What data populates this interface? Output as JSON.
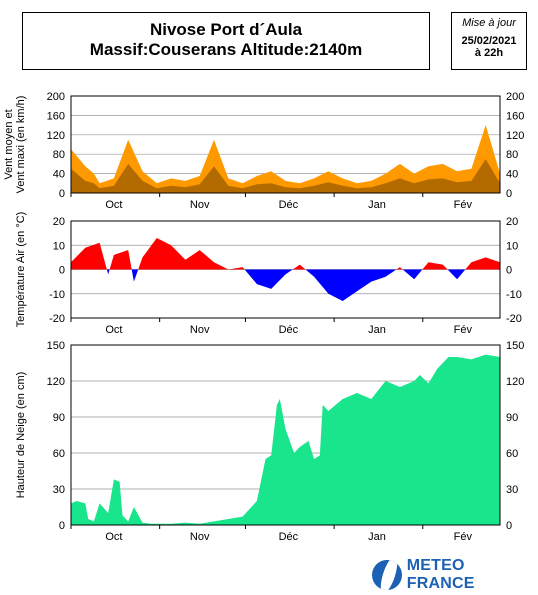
{
  "header": {
    "title_line1": "Nivose Port d´Aula",
    "title_line2": "Massif:Couserans Altitude:2140m",
    "update_label": "Mise à jour",
    "update_date": "25/02/2021",
    "update_time": "à 22h"
  },
  "logo": {
    "text": "METEO FRANCE",
    "brand_color": "#1c61b3"
  },
  "chart_data": [
    {
      "type": "area",
      "ylabel_line1": "Vent moyen et",
      "ylabel_line2": "Vent maxi (en km/h)",
      "ylim": [
        0,
        200
      ],
      "yticks": [
        0,
        40,
        80,
        120,
        160,
        200
      ],
      "months": [
        "Oct",
        "Nov",
        "Déc",
        "Jan",
        "Fév"
      ],
      "grid": true,
      "colors": {
        "max": "#ff9900",
        "mean": "#b36b00"
      },
      "x_day": [
        0,
        5,
        8,
        10,
        15,
        20,
        25,
        30,
        35,
        40,
        45,
        50,
        55,
        60,
        65,
        70,
        75,
        80,
        85,
        90,
        95,
        100,
        105,
        110,
        115,
        120,
        125,
        130,
        135,
        140,
        145,
        150
      ],
      "series": [
        {
          "values": [
            90,
            55,
            40,
            20,
            30,
            110,
            45,
            20,
            30,
            25,
            35,
            110,
            30,
            20,
            35,
            45,
            25,
            20,
            30,
            45,
            30,
            20,
            25,
            40,
            60,
            40,
            55,
            60,
            45,
            50,
            140,
            40
          ]
        },
        {
          "values": [
            50,
            25,
            20,
            10,
            15,
            60,
            25,
            10,
            15,
            12,
            18,
            55,
            15,
            10,
            18,
            20,
            12,
            10,
            15,
            22,
            15,
            10,
            12,
            20,
            30,
            20,
            28,
            30,
            22,
            25,
            70,
            20
          ]
        }
      ]
    },
    {
      "type": "area",
      "ylabel": "Température Air (en °C)",
      "ylim": [
        -20,
        20
      ],
      "yticks": [
        -20,
        -10,
        0,
        10,
        20
      ],
      "months": [
        "Oct",
        "Nov",
        "Déc",
        "Jan",
        "Fév"
      ],
      "grid": true,
      "colors": {
        "positive": "#ff0000",
        "negative": "#0000ff"
      },
      "x_day": [
        0,
        5,
        10,
        13,
        15,
        20,
        22,
        25,
        30,
        35,
        40,
        45,
        50,
        55,
        60,
        65,
        70,
        75,
        80,
        85,
        90,
        95,
        100,
        105,
        110,
        115,
        120,
        125,
        130,
        135,
        140,
        145,
        150
      ],
      "values": [
        3,
        9,
        11,
        -2,
        6,
        8,
        -5,
        5,
        13,
        10,
        4,
        8,
        3,
        0,
        1,
        -6,
        -8,
        -2,
        2,
        -3,
        -10,
        -13,
        -9,
        -5,
        -3,
        1,
        -4,
        3,
        2,
        -4,
        3,
        5,
        3
      ]
    },
    {
      "type": "area",
      "ylabel": "Hauteur de Neige (en cm)",
      "ylim": [
        0,
        150
      ],
      "yticks": [
        0,
        30,
        60,
        90,
        120,
        150
      ],
      "months": [
        "Oct",
        "Nov",
        "Déc",
        "Jan",
        "Fév"
      ],
      "grid": true,
      "colors": {
        "fill": "#19e58c"
      },
      "x_day": [
        0,
        2,
        5,
        6,
        8,
        10,
        13,
        15,
        17,
        18,
        20,
        22,
        25,
        28,
        30,
        35,
        40,
        45,
        50,
        55,
        60,
        65,
        68,
        70,
        72,
        73,
        75,
        78,
        80,
        83,
        85,
        87,
        88,
        90,
        95,
        100,
        105,
        110,
        115,
        120,
        122,
        125,
        128,
        132,
        135,
        140,
        145,
        150
      ],
      "values": [
        18,
        20,
        18,
        5,
        3,
        18,
        10,
        38,
        36,
        8,
        3,
        15,
        2,
        1,
        1,
        1,
        2,
        1,
        3,
        5,
        7,
        20,
        55,
        58,
        100,
        105,
        80,
        60,
        65,
        70,
        55,
        58,
        100,
        95,
        105,
        110,
        105,
        120,
        115,
        120,
        125,
        118,
        130,
        140,
        140,
        138,
        142,
        140
      ]
    }
  ]
}
